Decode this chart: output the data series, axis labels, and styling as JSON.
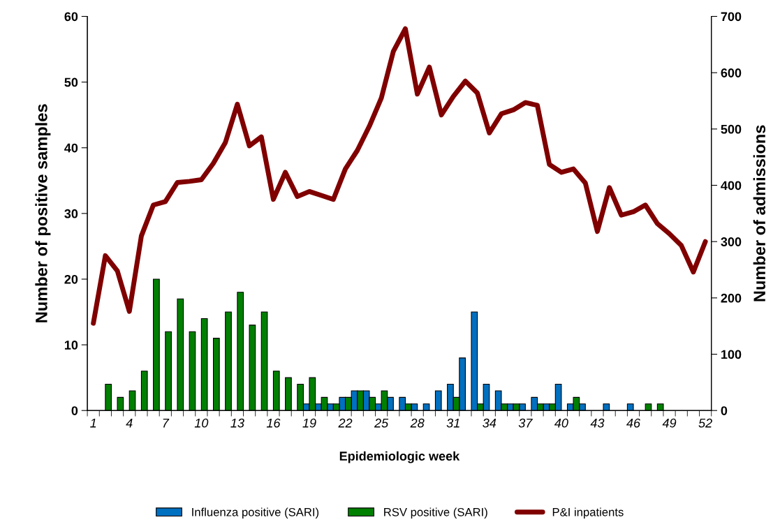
{
  "chart_data": {
    "type": "bar",
    "xlabel": "Epidemiologic week",
    "ylabel": "Number of positive samples",
    "y2label": "Number of admissions",
    "categories": [
      "1",
      null,
      null,
      "4",
      null,
      null,
      "7",
      null,
      null,
      "10",
      null,
      null,
      "13",
      null,
      null,
      "16",
      null,
      null,
      "19",
      null,
      null,
      "22",
      null,
      null,
      "25",
      null,
      null,
      "28",
      null,
      null,
      "31",
      null,
      null,
      "34",
      null,
      null,
      "37",
      null,
      null,
      "40",
      null,
      null,
      "43",
      null,
      null,
      "46",
      null,
      null,
      "49",
      null,
      null,
      "52"
    ],
    "series": [
      {
        "name": "Influenza positive (SARI)",
        "color": "#0070c0",
        "values": [
          0,
          0,
          0,
          0,
          0,
          0,
          0,
          0,
          0,
          0,
          0,
          0,
          0,
          0,
          0,
          0,
          0,
          0,
          1,
          1,
          1,
          2,
          3,
          3,
          1,
          2,
          2,
          1,
          1,
          3,
          4,
          8,
          15,
          4,
          3,
          1,
          1,
          2,
          1,
          4,
          1,
          1,
          0,
          1,
          0,
          1,
          0,
          0,
          0,
          0,
          0,
          0
        ]
      },
      {
        "name": "RSV positive (SARI)",
        "color": "#008000",
        "values": [
          0,
          4,
          2,
          3,
          6,
          20,
          12,
          17,
          12,
          14,
          11,
          15,
          18,
          13,
          15,
          6,
          5,
          4,
          5,
          2,
          1,
          2,
          3,
          2,
          3,
          0,
          1,
          0,
          0,
          0,
          2,
          0,
          1,
          0,
          1,
          1,
          0,
          1,
          1,
          0,
          2,
          0,
          0,
          0,
          0,
          0,
          1,
          1,
          0,
          0,
          0,
          0
        ]
      },
      {
        "name": "P&I inpatients",
        "type": "line",
        "axis": "y2",
        "color": "#800000",
        "values": [
          155,
          275,
          248,
          176,
          310,
          365,
          371,
          405,
          407,
          410,
          439,
          476,
          544,
          470,
          486,
          375,
          423,
          380,
          389,
          382,
          375,
          429,
          462,
          505,
          555,
          638,
          678,
          562,
          610,
          525,
          558,
          585,
          564,
          493,
          527,
          534,
          547,
          542,
          437,
          423,
          429,
          404,
          318,
          396,
          347,
          353,
          365,
          332,
          314,
          293,
          246,
          300
        ]
      }
    ],
    "ylim": [
      0,
      60
    ],
    "yticks": [
      0,
      10,
      20,
      30,
      40,
      50,
      60
    ],
    "y2lim": [
      0,
      700
    ],
    "y2ticks": [
      0,
      100,
      200,
      300,
      400,
      500,
      600,
      700
    ],
    "grid": false,
    "legend": "bottom",
    "marker": "none",
    "line_style": "solid"
  }
}
